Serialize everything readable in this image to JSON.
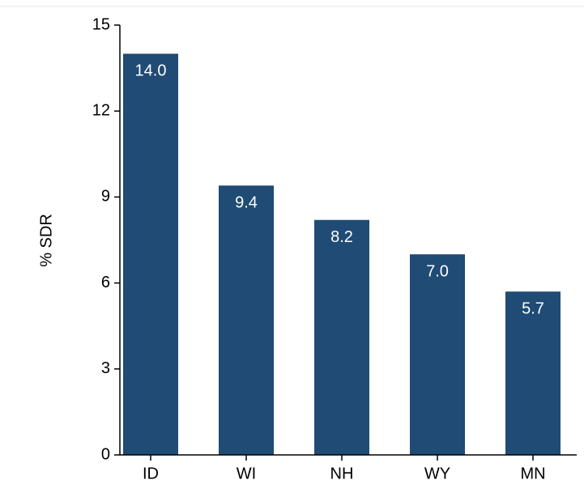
{
  "chart_data": {
    "type": "bar",
    "y_label": "% SDR",
    "categories": [
      "ID",
      "WI",
      "NH",
      "WY",
      "MN"
    ],
    "values": [
      14.0,
      9.4,
      8.2,
      7.0,
      5.7
    ],
    "value_labels": [
      "14.0",
      "9.4",
      "8.2",
      "7.0",
      "5.7"
    ],
    "color": "#1f4b74",
    "ylim": [
      0,
      15
    ],
    "yticks": [
      0,
      3,
      6,
      9,
      12,
      15
    ],
    "grid": false
  }
}
